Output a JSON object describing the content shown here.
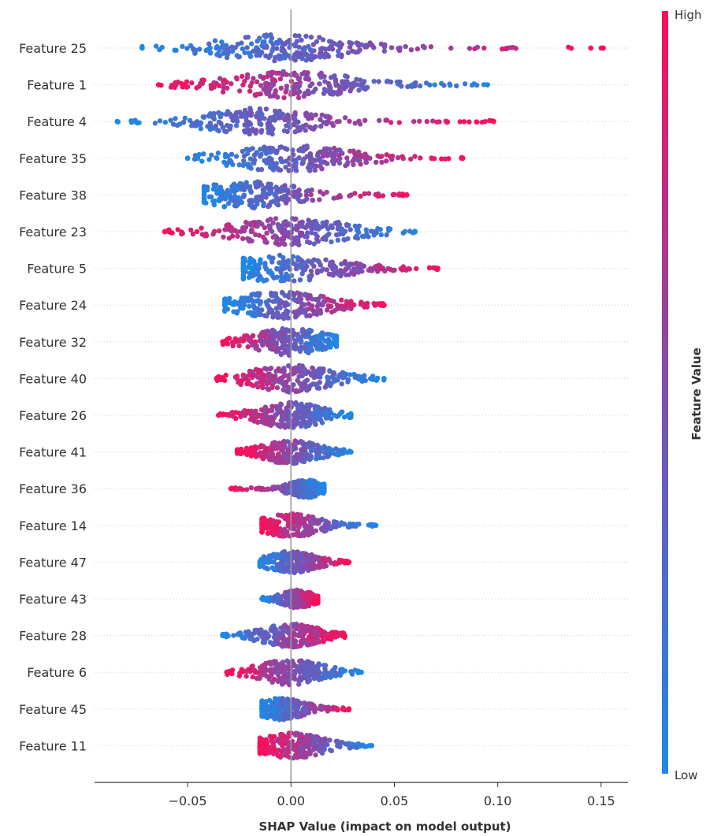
{
  "chart_data": {
    "type": "scatter",
    "subtype": "shap-beeswarm",
    "title": "",
    "xlabel": "SHAP Value (impact on model output)",
    "ylabel": "",
    "xlim": [
      -0.095,
      0.163
    ],
    "xticks": [
      -0.05,
      0.0,
      0.05,
      0.1,
      0.15
    ],
    "xtick_labels": [
      "−0.05",
      "0.00",
      "0.05",
      "0.10",
      "0.15"
    ],
    "zero_line": 0.0,
    "colorbar": {
      "title": "Feature Value",
      "high_label": "High",
      "low_label": "Low",
      "high_color": "#ff0d57",
      "low_color": "#1e88e5"
    },
    "features": [
      {
        "name": "Feature 25",
        "min": -0.072,
        "max": 0.151,
        "dense_min": -0.045,
        "dense_max": 0.035,
        "center": -0.005,
        "outliers": [
          0.145,
          0.151
        ],
        "high_side": "positive"
      },
      {
        "name": "Feature 1",
        "min": -0.064,
        "max": 0.095,
        "dense_min": -0.035,
        "dense_max": 0.04,
        "center": 0.0,
        "outliers": [],
        "high_side": "negative"
      },
      {
        "name": "Feature 4",
        "min": -0.084,
        "max": 0.098,
        "dense_min": -0.035,
        "dense_max": 0.03,
        "center": -0.015,
        "outliers": [],
        "high_side": "positive"
      },
      {
        "name": "Feature 35",
        "min": -0.05,
        "max": 0.083,
        "dense_min": -0.03,
        "dense_max": 0.04,
        "center": 0.0,
        "outliers": [
          0.068,
          0.083
        ],
        "high_side": "positive"
      },
      {
        "name": "Feature 38",
        "min": -0.042,
        "max": 0.056,
        "dense_min": -0.03,
        "dense_max": 0.03,
        "center": -0.02,
        "outliers": [
          0.056
        ],
        "high_side": "positive"
      },
      {
        "name": "Feature 23",
        "min": -0.061,
        "max": 0.06,
        "dense_min": -0.035,
        "dense_max": 0.035,
        "center": 0.0,
        "outliers": [
          -0.061,
          -0.059
        ],
        "high_side": "negative"
      },
      {
        "name": "Feature 5",
        "min": -0.023,
        "max": 0.071,
        "dense_min": -0.02,
        "dense_max": 0.05,
        "center": -0.005,
        "outliers": [],
        "high_side": "positive"
      },
      {
        "name": "Feature 24",
        "min": -0.032,
        "max": 0.045,
        "dense_min": -0.025,
        "dense_max": 0.03,
        "center": -0.005,
        "outliers": [],
        "high_side": "positive"
      },
      {
        "name": "Feature 32",
        "min": -0.033,
        "max": 0.022,
        "dense_min": -0.025,
        "dense_max": 0.02,
        "center": 0.0,
        "outliers": [],
        "high_side": "negative"
      },
      {
        "name": "Feature 40",
        "min": -0.036,
        "max": 0.045,
        "dense_min": -0.025,
        "dense_max": 0.025,
        "center": 0.0,
        "outliers": [],
        "high_side": "negative"
      },
      {
        "name": "Feature 26",
        "min": -0.035,
        "max": 0.029,
        "dense_min": -0.02,
        "dense_max": 0.02,
        "center": 0.0,
        "outliers": [
          0.029
        ],
        "high_side": "negative"
      },
      {
        "name": "Feature 41",
        "min": -0.026,
        "max": 0.029,
        "dense_min": -0.015,
        "dense_max": 0.02,
        "center": 0.0,
        "outliers": [],
        "high_side": "negative"
      },
      {
        "name": "Feature 36",
        "min": -0.029,
        "max": 0.016,
        "dense_min": -0.01,
        "dense_max": 0.01,
        "center": 0.007,
        "outliers": [
          0.016
        ],
        "high_side": "negative"
      },
      {
        "name": "Feature 14",
        "min": -0.014,
        "max": 0.041,
        "dense_min": -0.005,
        "dense_max": 0.03,
        "center": 0.0,
        "outliers": [
          -0.014
        ],
        "high_side": "negative"
      },
      {
        "name": "Feature 47",
        "min": -0.015,
        "max": 0.028,
        "dense_min": -0.01,
        "dense_max": 0.02,
        "center": 0.0,
        "outliers": [],
        "high_side": "positive"
      },
      {
        "name": "Feature 43",
        "min": -0.014,
        "max": 0.013,
        "dense_min": -0.01,
        "dense_max": 0.01,
        "center": 0.003,
        "outliers": [],
        "high_side": "positive"
      },
      {
        "name": "Feature 28",
        "min": -0.033,
        "max": 0.026,
        "dense_min": -0.02,
        "dense_max": 0.015,
        "center": 0.0,
        "outliers": [
          -0.033
        ],
        "high_side": "positive"
      },
      {
        "name": "Feature 6",
        "min": -0.031,
        "max": 0.034,
        "dense_min": -0.02,
        "dense_max": 0.02,
        "center": 0.0,
        "outliers": [],
        "high_side": "negative"
      },
      {
        "name": "Feature 45",
        "min": -0.014,
        "max": 0.028,
        "dense_min": -0.01,
        "dense_max": 0.02,
        "center": -0.005,
        "outliers": [],
        "high_side": "positive"
      },
      {
        "name": "Feature 11",
        "min": -0.015,
        "max": 0.039,
        "dense_min": -0.01,
        "dense_max": 0.03,
        "center": 0.0,
        "outliers": [
          0.035,
          0.039
        ],
        "high_side": "negative"
      }
    ]
  }
}
